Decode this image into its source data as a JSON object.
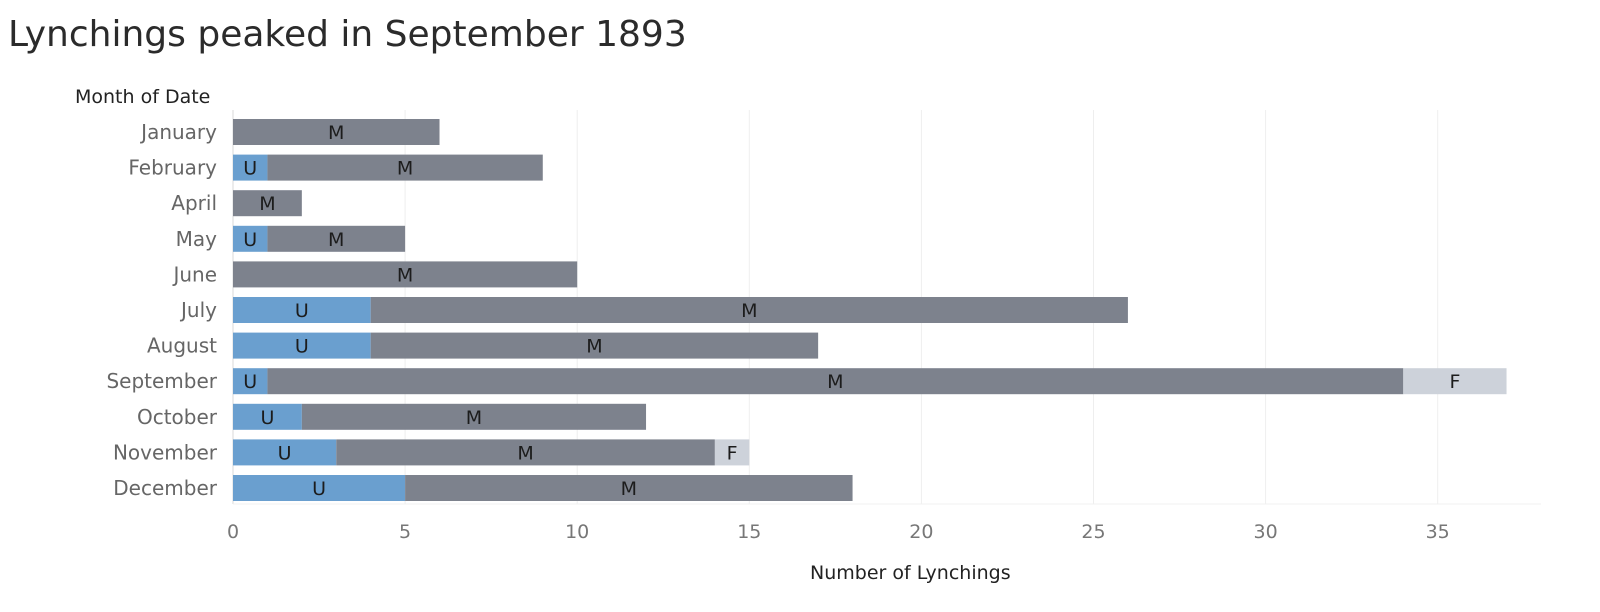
{
  "chart_data": {
    "type": "bar",
    "orientation": "horizontal",
    "stacked": true,
    "title": "Lynchings peaked in September 1893",
    "row_header": "Month of Date",
    "xlabel": "Number of Lynchings",
    "xlim": [
      0,
      38
    ],
    "xticks": [
      0,
      5,
      10,
      15,
      20,
      25,
      30,
      35
    ],
    "grid": "vertical",
    "categories": [
      "January",
      "February",
      "April",
      "May",
      "June",
      "July",
      "August",
      "September",
      "October",
      "November",
      "December"
    ],
    "series": [
      {
        "name": "U",
        "color": "#6a9fcf",
        "values": [
          0,
          1,
          0,
          1,
          0,
          4,
          4,
          1,
          2,
          3,
          5
        ]
      },
      {
        "name": "M",
        "color": "#7d828d",
        "values": [
          6,
          8,
          2,
          4,
          10,
          22,
          13,
          33,
          10,
          11,
          13
        ]
      },
      {
        "name": "F",
        "color": "#cdd2da",
        "values": [
          0,
          0,
          0,
          0,
          0,
          0,
          0,
          3,
          0,
          1,
          0
        ]
      }
    ]
  }
}
